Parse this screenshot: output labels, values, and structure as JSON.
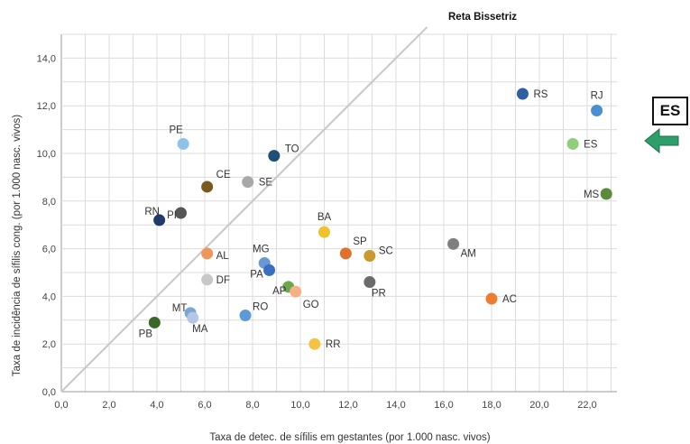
{
  "chart_data": {
    "type": "scatter",
    "xlabel": "Taxa de detec. de sífilis em gestantes (por 1.000 nasc. vivos)",
    "ylabel": "Taxa de incidência de sífilis cong. (por 1.000 nasc. vivos)",
    "xlim": [
      0,
      22.8
    ],
    "ylim": [
      0,
      15
    ],
    "xticks": [
      "0,0",
      "2,0",
      "4,0",
      "6,0",
      "8,0",
      "10,0",
      "12,0",
      "14,0",
      "16,0",
      "18,0",
      "20,0",
      "22,0"
    ],
    "yticks": [
      "0,0",
      "2,0",
      "4,0",
      "6,0",
      "8,0",
      "10,0",
      "12,0",
      "14,0"
    ],
    "grid": true,
    "reference_line": {
      "label": "Reta Bissetriz",
      "x": [
        0,
        15.3
      ],
      "y": [
        0,
        15.3
      ],
      "color": "#c8c8c8"
    },
    "points": [
      {
        "label": "RS",
        "x": 19.3,
        "y": 12.5,
        "color": "#2e5fa3"
      },
      {
        "label": "RJ",
        "x": 22.4,
        "y": 11.8,
        "color": "#4a8fd0"
      },
      {
        "label": "ES",
        "x": 21.4,
        "y": 10.4,
        "color": "#8fcf78"
      },
      {
        "label": "MS",
        "x": 22.8,
        "y": 8.3,
        "color": "#5a8a3c"
      },
      {
        "label": "PE",
        "x": 5.1,
        "y": 10.4,
        "color": "#8ec2e6"
      },
      {
        "label": "TO",
        "x": 8.9,
        "y": 9.9,
        "color": "#1f4e79"
      },
      {
        "label": "CE",
        "x": 6.1,
        "y": 8.6,
        "color": "#7a5b1f"
      },
      {
        "label": "SE",
        "x": 7.8,
        "y": 8.8,
        "color": "#a8a8a8"
      },
      {
        "label": "RN",
        "x": 4.1,
        "y": 7.2,
        "color": "#1f3a6b"
      },
      {
        "label": "PI",
        "x": 5.0,
        "y": 7.5,
        "color": "#555555"
      },
      {
        "label": "BA",
        "x": 11.0,
        "y": 6.7,
        "color": "#f2c12e"
      },
      {
        "label": "AL",
        "x": 6.1,
        "y": 5.8,
        "color": "#f0965a"
      },
      {
        "label": "MG",
        "x": 8.5,
        "y": 5.4,
        "color": "#6a97d6"
      },
      {
        "label": "PA",
        "x": 8.7,
        "y": 5.1,
        "color": "#3a6fc0"
      },
      {
        "label": "SP",
        "x": 11.9,
        "y": 5.8,
        "color": "#e0702a"
      },
      {
        "label": "SC",
        "x": 12.9,
        "y": 5.7,
        "color": "#c99a2e"
      },
      {
        "label": "AM",
        "x": 16.4,
        "y": 6.2,
        "color": "#7f7f7f"
      },
      {
        "label": "DF",
        "x": 6.1,
        "y": 4.7,
        "color": "#c8c8c8"
      },
      {
        "label": "PR",
        "x": 12.9,
        "y": 4.6,
        "color": "#6b6b6b"
      },
      {
        "label": "AP",
        "x": 9.5,
        "y": 4.4,
        "color": "#6aa84f"
      },
      {
        "label": "GO",
        "x": 9.8,
        "y": 4.2,
        "color": "#f4b183"
      },
      {
        "label": "AC",
        "x": 18.0,
        "y": 3.9,
        "color": "#ed7d31"
      },
      {
        "label": "RO",
        "x": 7.7,
        "y": 3.2,
        "color": "#5b9bd5"
      },
      {
        "label": "MT",
        "x": 5.4,
        "y": 3.3,
        "color": "#7aa6d6"
      },
      {
        "label": "MA",
        "x": 5.5,
        "y": 3.1,
        "color": "#b4c7e7"
      },
      {
        "label": "PB",
        "x": 3.9,
        "y": 2.9,
        "color": "#38682a"
      },
      {
        "label": "RR",
        "x": 10.6,
        "y": 2.0,
        "color": "#f5c242"
      }
    ]
  },
  "callout": {
    "label": "ES",
    "arrow_color": "#2e9e6a"
  }
}
